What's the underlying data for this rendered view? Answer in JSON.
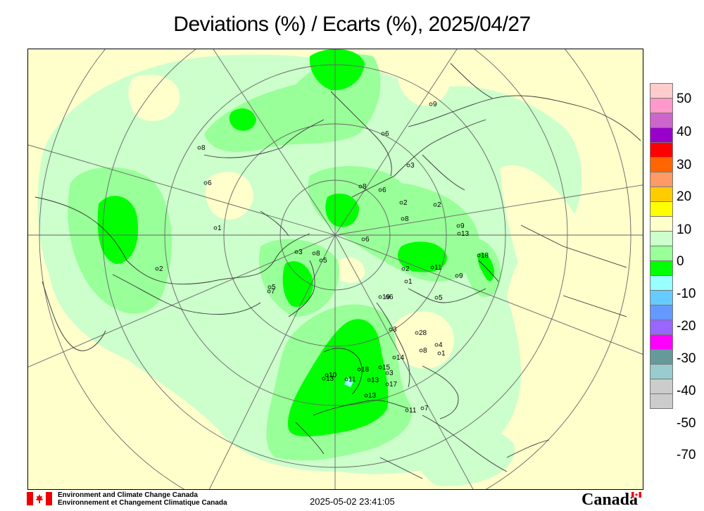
{
  "title": "Deviations (%) / Ecarts (%), 2025/04/27",
  "legend": {
    "labels": [
      "50",
      "40",
      "30",
      "20",
      "10",
      "0",
      "-10",
      "-20",
      "-30",
      "-40",
      "-50",
      "-70"
    ],
    "colors": [
      "#ffcccc",
      "#ff99cc",
      "#cc66cc",
      "#9900cc",
      "#ff0000",
      "#ff6600",
      "#ff9966",
      "#ffcc00",
      "#ffff00",
      "#ffffcc",
      "#ccffcc",
      "#99ff99",
      "#00ff00",
      "#99ffff",
      "#66ccff",
      "#6699ff",
      "#9966ff",
      "#ff00ff",
      "#669999",
      "#99cccc",
      "#cccccc",
      "#cccccc"
    ]
  },
  "stations": [
    "9",
    "6",
    "8",
    "3",
    "6",
    "1",
    "2",
    "7",
    "2",
    "8",
    "5",
    "6",
    "6",
    "9",
    "2",
    "3",
    "8",
    "8",
    "13",
    "5",
    "18",
    "11",
    "1",
    "9",
    "2",
    "5",
    "19",
    "6",
    "3",
    "28",
    "8",
    "4",
    "1",
    "18",
    "14",
    "13",
    "10",
    "15",
    "3",
    "13",
    "11",
    "13",
    "17",
    "11",
    "7"
  ],
  "footer": {
    "org_en": "Environment and Climate Change Canada",
    "org_fr": "Environnement et Changement Climatique Canada",
    "timestamp": "2025-05-02 23:41:05",
    "wordmark": "Canada"
  }
}
